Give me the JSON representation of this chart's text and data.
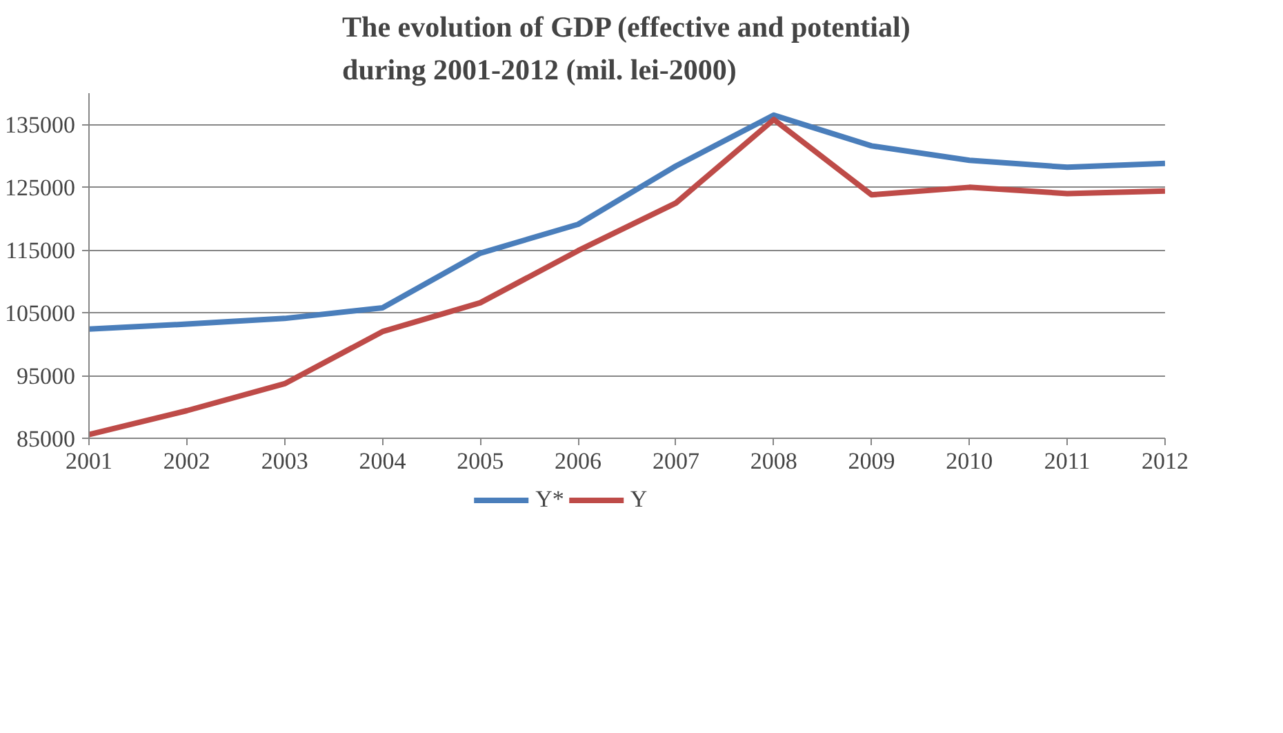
{
  "chart_data": {
    "type": "line",
    "title": "The evolution of GDP (effective and potential)\nduring 2001-2012 (mil. lei-2000)",
    "categories": [
      "2001",
      "2002",
      "2003",
      "2004",
      "2005",
      "2006",
      "2007",
      "2008",
      "2009",
      "2010",
      "2011",
      "2012"
    ],
    "series": [
      {
        "name": "Y*",
        "color": "#4a7ebb",
        "values": [
          102400,
          103200,
          104100,
          105800,
          114500,
          119100,
          128400,
          136500,
          131600,
          129300,
          128200,
          128800
        ]
      },
      {
        "name": "Y",
        "color": "#be4b48",
        "values": [
          85600,
          89400,
          93700,
          102000,
          106600,
          114900,
          122500,
          135800,
          123800,
          125000,
          124000,
          124400
        ]
      }
    ],
    "ylim": [
      85000,
      140000
    ],
    "yticks": [
      85000,
      95000,
      105000,
      115000,
      125000,
      135000
    ],
    "grid": "y",
    "legend": "bottom",
    "marker": "none",
    "line_style": "solid"
  }
}
